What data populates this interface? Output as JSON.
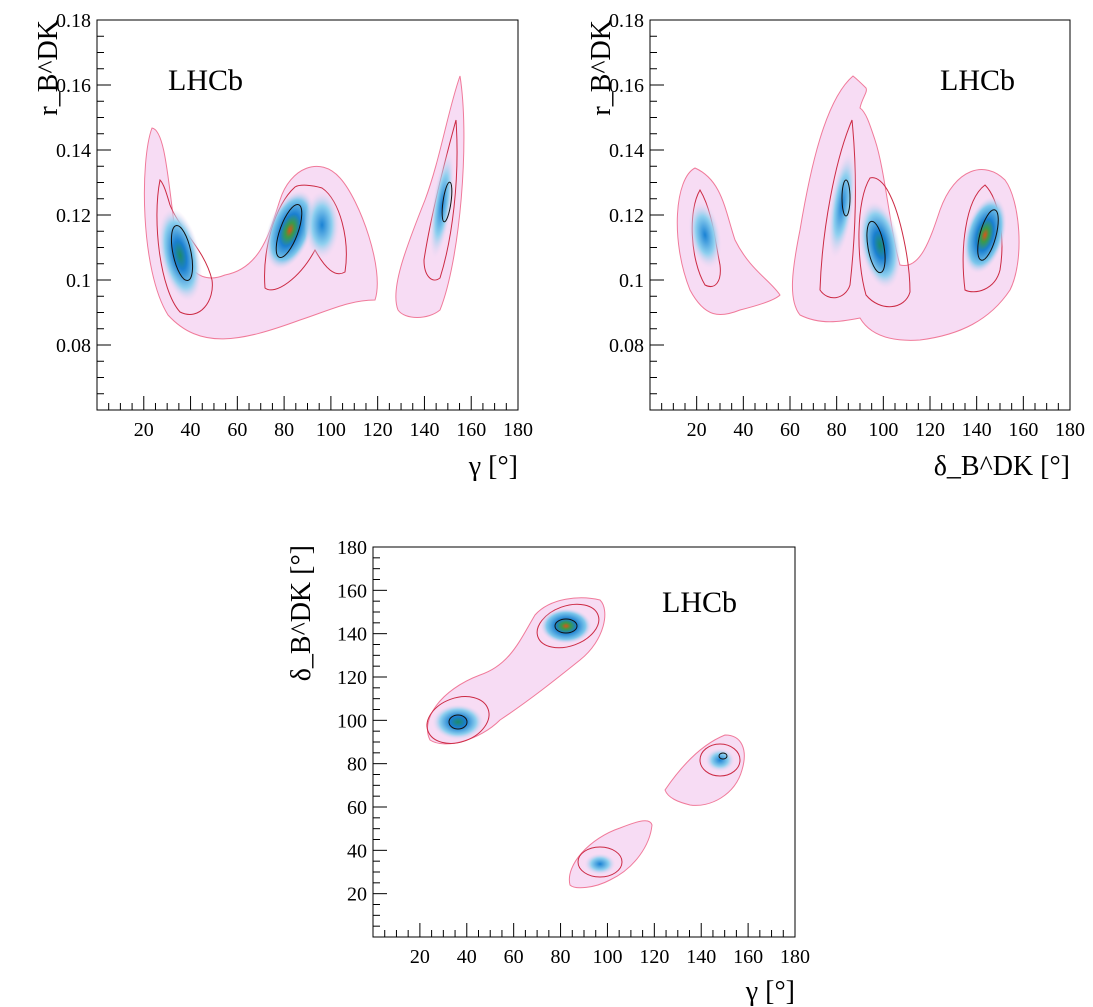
{
  "chart_data": [
    {
      "type": "heatmap",
      "label": "LHCb",
      "xlabel": "γ [°]",
      "ylabel": "r_B^DK",
      "xlim": [
        0,
        180
      ],
      "ylim": [
        0.06,
        0.18
      ],
      "xticks": [
        "20",
        "40",
        "60",
        "80",
        "100",
        "120",
        "140",
        "160",
        "180"
      ],
      "yticks": [
        "0.08",
        "0.1",
        "0.12",
        "0.14",
        "0.16",
        "0.18"
      ],
      "peaks": [
        {
          "x": 37,
          "y": 0.108,
          "strength": 0.6
        },
        {
          "x": 84,
          "y": 0.115,
          "strength": 1.0
        },
        {
          "x": 97,
          "y": 0.115,
          "strength": 0.55
        },
        {
          "x": 150,
          "y": 0.124,
          "strength": 0.55
        }
      ]
    },
    {
      "type": "heatmap",
      "label": "LHCb",
      "xlabel": "δ_B^DK [°]",
      "ylabel": "r_B^DK",
      "xlim": [
        0,
        180
      ],
      "ylim": [
        0.06,
        0.18
      ],
      "xticks": [
        "20",
        "40",
        "60",
        "80",
        "100",
        "120",
        "140",
        "160",
        "180"
      ],
      "yticks": [
        "0.08",
        "0.1",
        "0.12",
        "0.14",
        "0.16",
        "0.18"
      ],
      "peaks": [
        {
          "x": 32,
          "y": 0.117,
          "strength": 0.5
        },
        {
          "x": 85,
          "y": 0.124,
          "strength": 0.55
        },
        {
          "x": 98,
          "y": 0.108,
          "strength": 0.7
        },
        {
          "x": 145,
          "y": 0.115,
          "strength": 1.0
        }
      ]
    },
    {
      "type": "heatmap",
      "label": "LHCb",
      "xlabel": "γ [°]",
      "ylabel": "δ_B^DK [°]",
      "xlim": [
        0,
        180
      ],
      "ylim": [
        0,
        180
      ],
      "xticks": [
        "20",
        "40",
        "60",
        "80",
        "100",
        "120",
        "140",
        "160",
        "180"
      ],
      "yticks": [
        "20",
        "40",
        "60",
        "80",
        "100",
        "120",
        "140",
        "160",
        "180"
      ],
      "peaks": [
        {
          "x": 37,
          "y": 97,
          "strength": 0.7
        },
        {
          "x": 84,
          "y": 144,
          "strength": 1.0
        },
        {
          "x": 150,
          "y": 83,
          "strength": 0.55
        },
        {
          "x": 96,
          "y": 33,
          "strength": 0.5
        }
      ]
    }
  ]
}
